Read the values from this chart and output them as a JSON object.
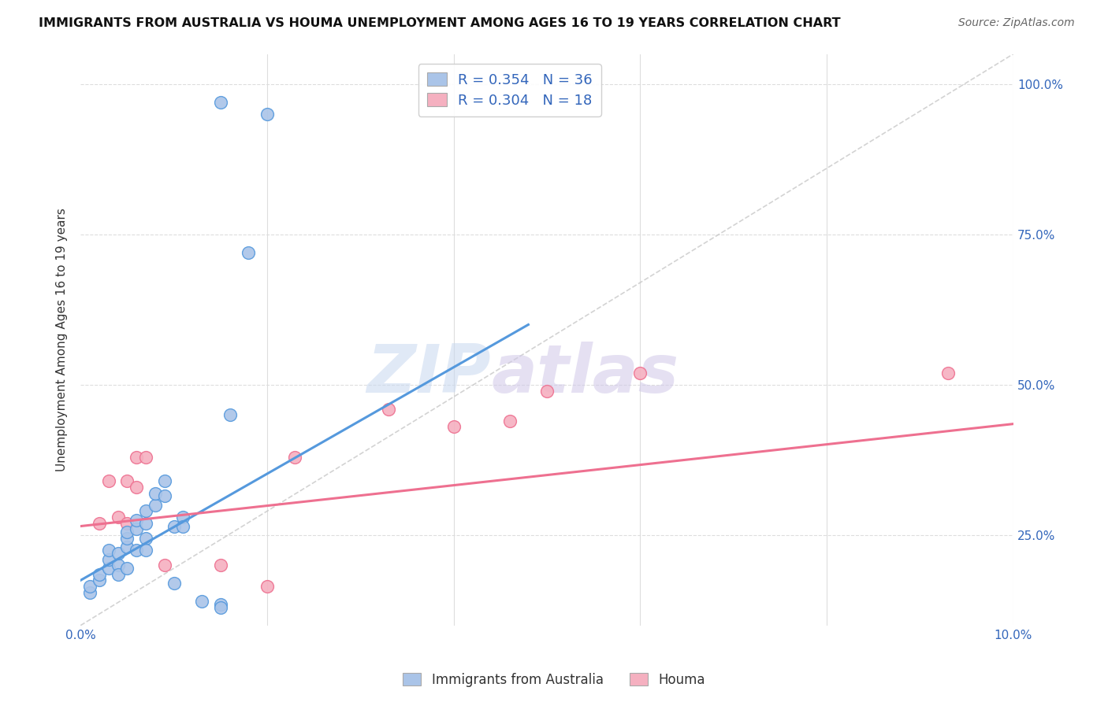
{
  "title": "IMMIGRANTS FROM AUSTRALIA VS HOUMA UNEMPLOYMENT AMONG AGES 16 TO 19 YEARS CORRELATION CHART",
  "source": "Source: ZipAtlas.com",
  "ylabel": "Unemployment Among Ages 16 to 19 years",
  "xlim": [
    0.0,
    0.1
  ],
  "ylim": [
    0.1,
    1.05
  ],
  "x_ticks": [
    0.0,
    0.02,
    0.04,
    0.06,
    0.08,
    0.1
  ],
  "x_tick_labels": [
    "0.0%",
    "",
    "",
    "",
    "",
    "10.0%"
  ],
  "y_ticks": [
    0.25,
    0.5,
    0.75,
    1.0
  ],
  "y_tick_labels": [
    "25.0%",
    "50.0%",
    "75.0%",
    "100.0%"
  ],
  "blue_R": 0.354,
  "blue_N": 36,
  "pink_R": 0.304,
  "pink_N": 18,
  "blue_color": "#aac4e8",
  "pink_color": "#f5b0c0",
  "blue_line_color": "#5599dd",
  "pink_line_color": "#ee7090",
  "diag_line_color": "#c8c8c8",
  "blue_scatter_x": [
    0.001,
    0.001,
    0.002,
    0.002,
    0.003,
    0.003,
    0.003,
    0.004,
    0.004,
    0.004,
    0.005,
    0.005,
    0.005,
    0.005,
    0.006,
    0.006,
    0.006,
    0.007,
    0.007,
    0.007,
    0.007,
    0.008,
    0.008,
    0.009,
    0.009,
    0.01,
    0.01,
    0.011,
    0.011,
    0.013,
    0.016,
    0.018,
    0.02,
    0.015,
    0.015,
    0.015
  ],
  "blue_scatter_y": [
    0.155,
    0.165,
    0.175,
    0.185,
    0.195,
    0.21,
    0.225,
    0.2,
    0.22,
    0.185,
    0.23,
    0.245,
    0.255,
    0.195,
    0.26,
    0.275,
    0.225,
    0.29,
    0.27,
    0.245,
    0.225,
    0.3,
    0.32,
    0.315,
    0.34,
    0.265,
    0.17,
    0.28,
    0.265,
    0.14,
    0.45,
    0.72,
    0.95,
    0.97,
    0.135,
    0.13
  ],
  "pink_scatter_x": [
    0.002,
    0.003,
    0.004,
    0.005,
    0.005,
    0.006,
    0.006,
    0.007,
    0.009,
    0.015,
    0.02,
    0.023,
    0.033,
    0.04,
    0.046,
    0.05,
    0.06,
    0.093
  ],
  "pink_scatter_y": [
    0.27,
    0.34,
    0.28,
    0.34,
    0.27,
    0.33,
    0.38,
    0.38,
    0.2,
    0.2,
    0.165,
    0.38,
    0.46,
    0.43,
    0.44,
    0.49,
    0.52,
    0.52
  ],
  "blue_line_x0": 0.0,
  "blue_line_y0": 0.175,
  "blue_line_x1": 0.048,
  "blue_line_y1": 0.6,
  "pink_line_x0": 0.0,
  "pink_line_y0": 0.265,
  "pink_line_x1": 0.1,
  "pink_line_y1": 0.435,
  "watermark_zip": "ZIP",
  "watermark_atlas": "atlas",
  "background_color": "#ffffff",
  "grid_color": "#dddddd"
}
